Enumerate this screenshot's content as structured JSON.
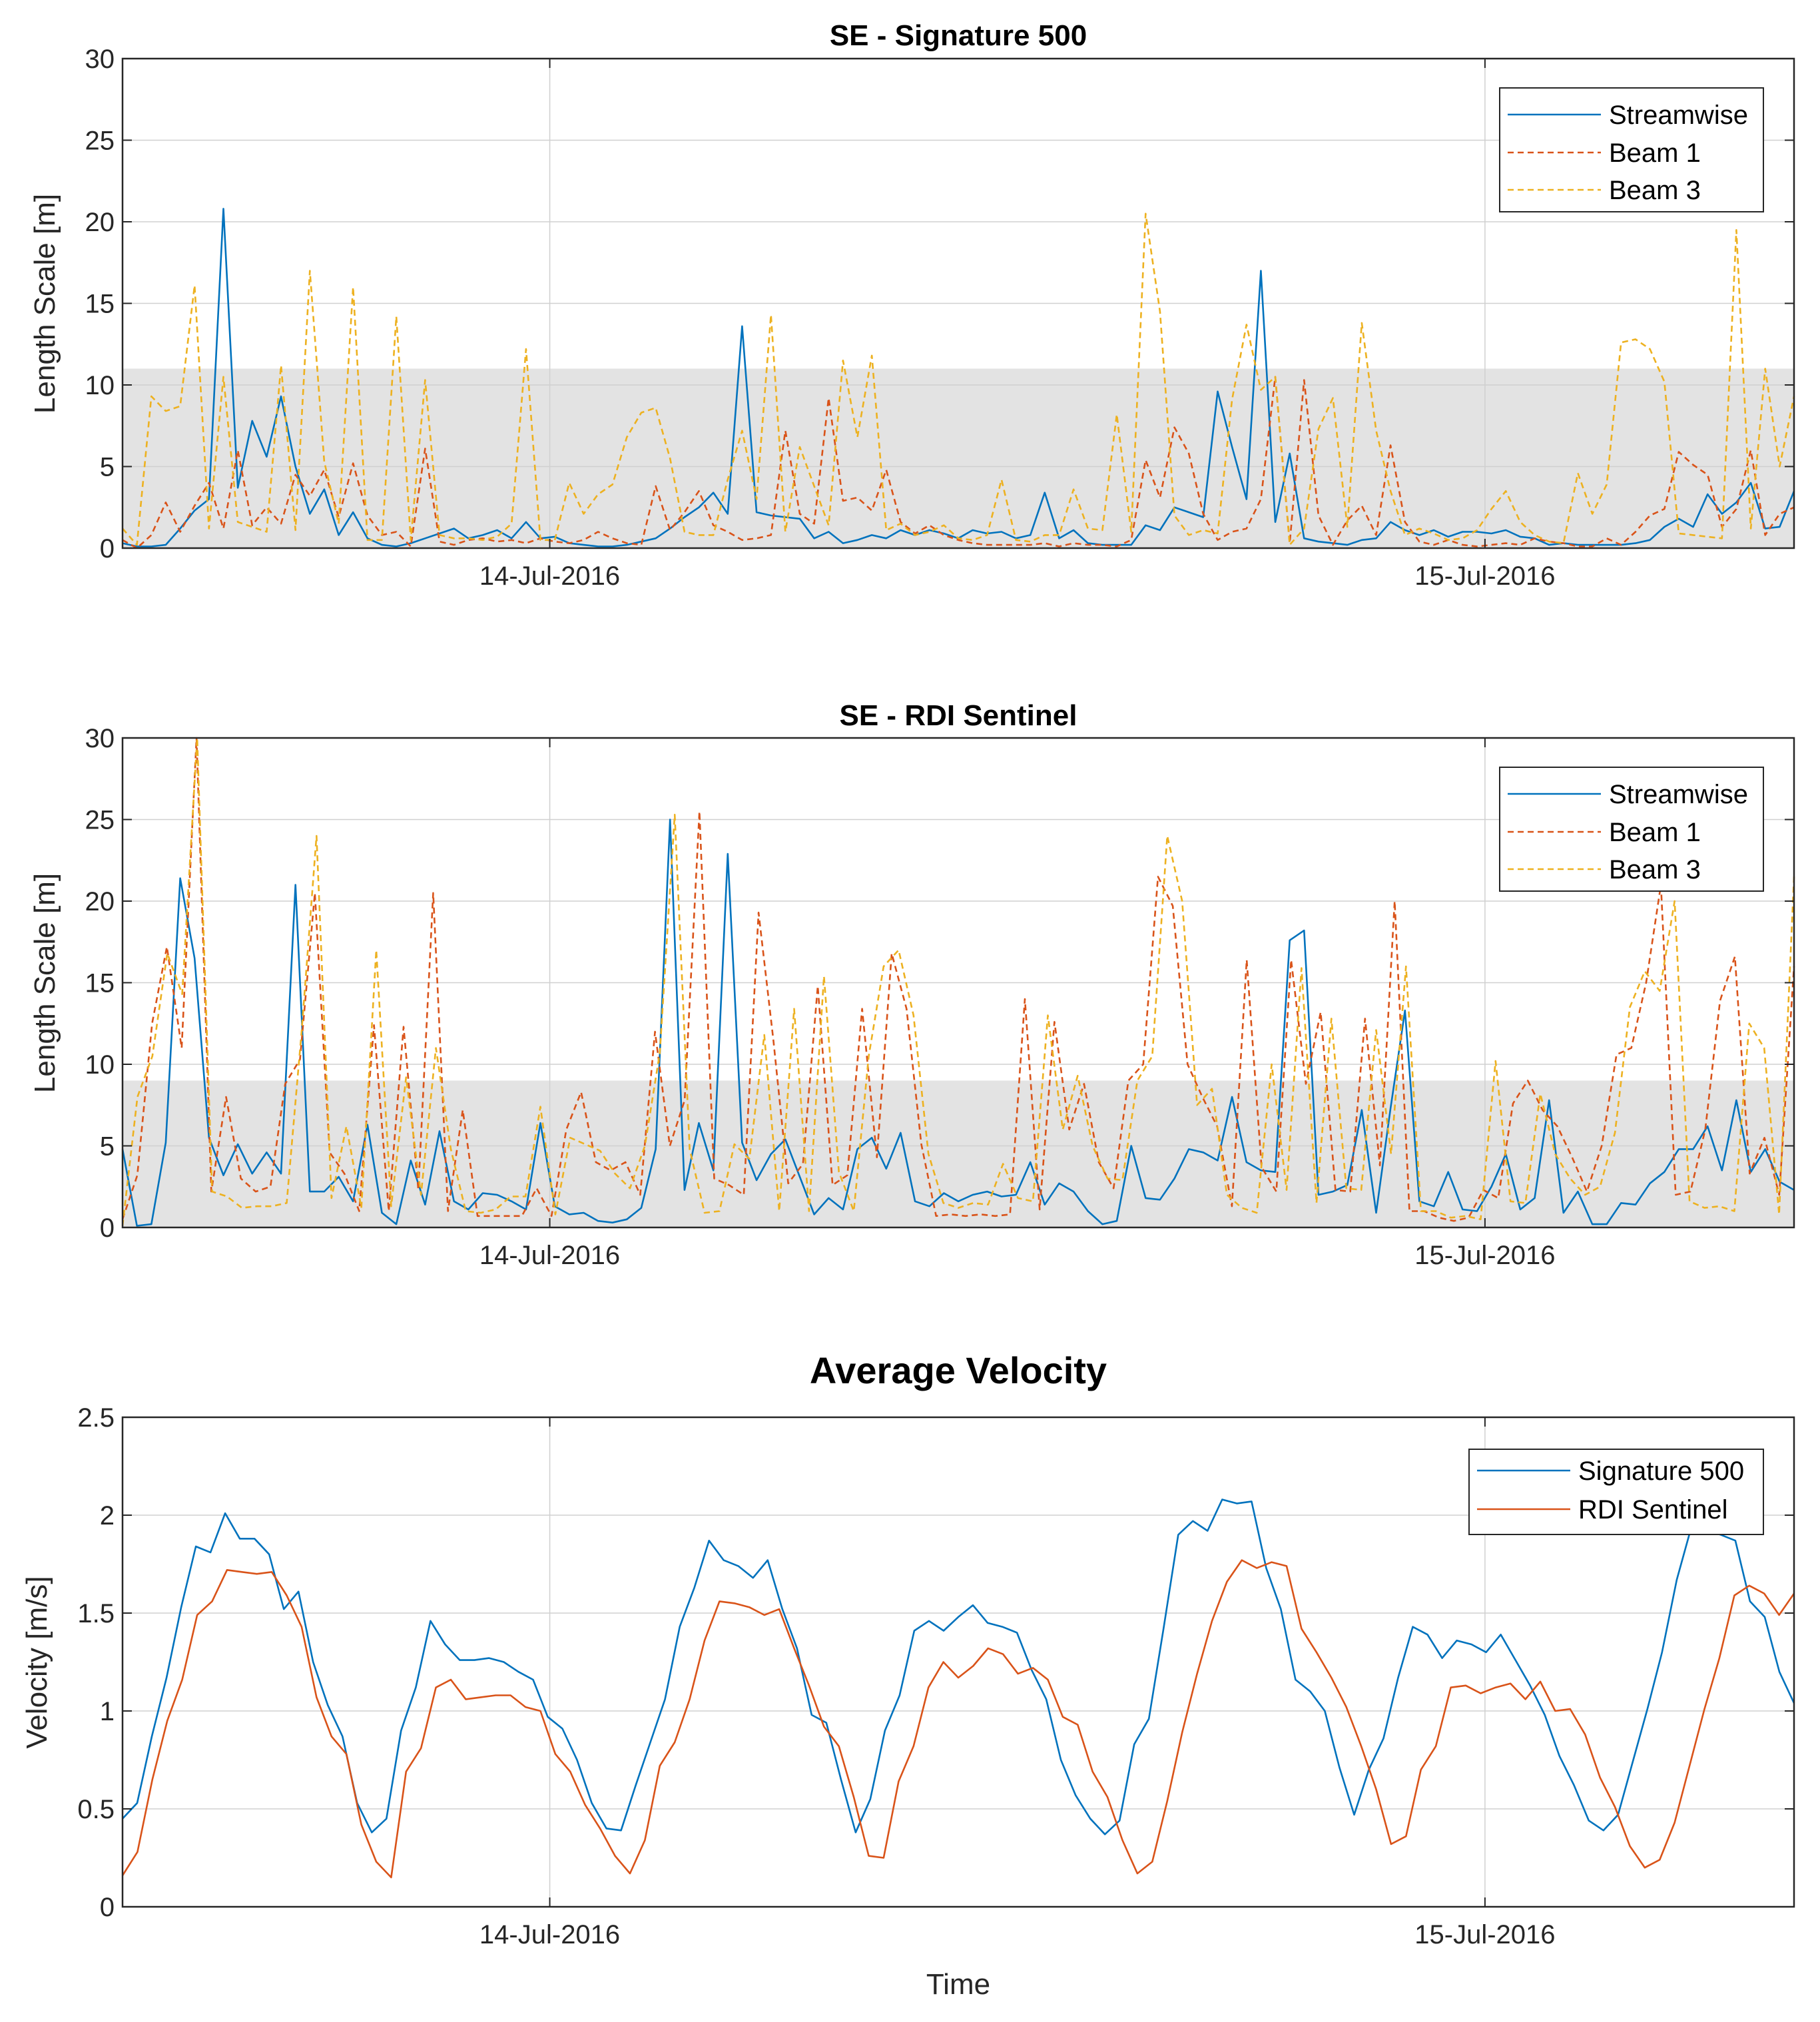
{
  "chart_data": [
    {
      "type": "line",
      "title": "SE - Signature 500",
      "xlabel": "",
      "ylabel": "Length Scale [m]",
      "ylim": [
        0,
        30
      ],
      "yticks": [
        0,
        5,
        10,
        15,
        20,
        25,
        30
      ],
      "xticks": [
        {
          "t": 0.2556,
          "label": "14-Jul-2016"
        },
        {
          "t": 0.8151,
          "label": "15-Jul-2016"
        }
      ],
      "shaded_band": [
        0,
        11
      ],
      "legend": "top-right",
      "series": [
        {
          "name": "Streamwise",
          "color": "#0072BD",
          "dash": "solid",
          "values": [
            0.3,
            0.1,
            0.1,
            0.2,
            1.2,
            2.3,
            3.0,
            20.8,
            3.7,
            7.8,
            5.6,
            9.3,
            5.0,
            2.1,
            3.6,
            0.8,
            2.2,
            0.6,
            0.2,
            0.1,
            0.3,
            0.6,
            0.9,
            1.2,
            0.6,
            0.8,
            1.1,
            0.6,
            1.6,
            0.6,
            0.7,
            0.3,
            0.2,
            0.1,
            0.1,
            0.2,
            0.4,
            0.6,
            1.2,
            1.9,
            2.5,
            3.4,
            2.1,
            13.6,
            2.2,
            2.0,
            1.9,
            1.8,
            0.6,
            1.0,
            0.3,
            0.5,
            0.8,
            0.6,
            1.1,
            0.8,
            1.1,
            0.9,
            0.6,
            1.1,
            0.9,
            1.0,
            0.6,
            0.8,
            3.4,
            0.6,
            1.1,
            0.3,
            0.2,
            0.2,
            0.2,
            1.4,
            1.1,
            2.5,
            2.2,
            1.9,
            9.6,
            6.2,
            3.0,
            17.0,
            1.6,
            5.8,
            0.6,
            0.4,
            0.3,
            0.2,
            0.5,
            0.6,
            1.6,
            1.1,
            0.8,
            1.1,
            0.7,
            1.0,
            1.0,
            0.9,
            1.1,
            0.7,
            0.6,
            0.2,
            0.3,
            0.2,
            0.2,
            0.2,
            0.2,
            0.3,
            0.5,
            1.3,
            1.8,
            1.3,
            3.3,
            2.1,
            2.8,
            4.0,
            1.2,
            1.3,
            3.5
          ]
        },
        {
          "name": "Beam 1",
          "color": "#D95319",
          "dash": "dashed",
          "values": [
            0.5,
            0.0,
            0.8,
            2.8,
            1.0,
            2.6,
            4.0,
            1.2,
            6.0,
            1.4,
            2.5,
            1.5,
            4.5,
            3.2,
            4.8,
            1.9,
            5.2,
            2.0,
            0.8,
            1.0,
            0.1,
            6.1,
            0.4,
            0.2,
            0.5,
            0.6,
            0.4,
            0.5,
            0.3,
            0.6,
            0.4,
            0.3,
            0.5,
            1.0,
            0.6,
            0.3,
            0.2,
            3.8,
            1.1,
            2.2,
            3.5,
            1.4,
            1.0,
            0.5,
            0.6,
            0.8,
            7.2,
            2.1,
            1.5,
            9.2,
            2.9,
            3.1,
            2.3,
            4.8,
            1.6,
            0.9,
            1.4,
            0.8,
            0.5,
            0.3,
            0.2,
            0.2,
            0.2,
            0.2,
            0.3,
            0.1,
            0.3,
            0.2,
            0.2,
            0.1,
            0.5,
            5.4,
            3.1,
            7.4,
            5.8,
            2.1,
            0.5,
            1.0,
            1.2,
            3.0,
            10.5,
            0.3,
            10.3,
            2.0,
            0.2,
            1.7,
            2.6,
            0.8,
            6.3,
            1.6,
            0.4,
            0.2,
            0.5,
            0.2,
            0.1,
            0.2,
            0.3,
            0.2,
            0.6,
            0.4,
            0.3,
            0.1,
            0.1,
            0.6,
            0.2,
            1.0,
            2.0,
            2.4,
            5.9,
            5.1,
            4.5,
            1.3,
            2.4,
            6.0,
            0.8,
            2.1,
            2.5
          ]
        },
        {
          "name": "Beam 3",
          "color": "#EDB120",
          "dash": "dashed",
          "values": [
            1.2,
            0.2,
            9.3,
            8.4,
            8.7,
            16.1,
            1.2,
            10.5,
            1.6,
            1.3,
            1.0,
            11.2,
            1.1,
            17.0,
            5.3,
            1.5,
            16.0,
            0.5,
            0.5,
            14.2,
            0.5,
            10.3,
            0.8,
            0.6,
            0.6,
            0.5,
            0.7,
            1.5,
            12.2,
            0.5,
            0.5,
            4.0,
            2.1,
            3.3,
            3.9,
            6.8,
            8.3,
            8.6,
            5.5,
            1.0,
            0.8,
            0.8,
            4.2,
            7.2,
            3.0,
            14.3,
            1.0,
            6.2,
            3.8,
            1.4,
            11.5,
            6.8,
            11.8,
            1.1,
            1.5,
            0.8,
            1.0,
            1.4,
            0.6,
            0.5,
            0.8,
            4.2,
            0.5,
            0.4,
            0.8,
            0.8,
            3.6,
            1.2,
            1.1,
            8.2,
            1.0,
            20.5,
            14.5,
            2.0,
            0.8,
            1.1,
            0.9,
            9.1,
            13.7,
            9.7,
            10.5,
            0.2,
            1.2,
            7.3,
            9.2,
            1.3,
            13.8,
            7.2,
            3.5,
            0.8,
            1.2,
            0.9,
            0.5,
            0.6,
            1.1,
            2.4,
            3.5,
            1.6,
            0.8,
            0.4,
            0.3,
            4.6,
            2.1,
            3.9,
            12.6,
            12.8,
            12.2,
            10.2,
            0.9,
            0.8,
            0.7,
            0.6,
            19.5,
            1.2,
            11.0,
            5.0,
            9.3
          ]
        }
      ]
    },
    {
      "type": "line",
      "title": "SE - RDI Sentinel",
      "xlabel": "",
      "ylabel": "Length Scale [m]",
      "ylim": [
        0,
        30
      ],
      "yticks": [
        0,
        5,
        10,
        15,
        20,
        25,
        30
      ],
      "xticks": [
        {
          "t": 0.2556,
          "label": "14-Jul-2016"
        },
        {
          "t": 0.8151,
          "label": "15-Jul-2016"
        }
      ],
      "shaded_band": [
        0,
        9
      ],
      "legend": "top-right",
      "series": [
        {
          "name": "Streamwise",
          "color": "#0072BD",
          "dash": "solid",
          "values": [
            4.8,
            0.1,
            0.2,
            5.2,
            21.4,
            16.5,
            5.5,
            3.2,
            5.1,
            3.3,
            4.6,
            3.3,
            21.0,
            2.2,
            2.2,
            3.1,
            1.6,
            6.3,
            0.9,
            0.2,
            4.1,
            1.4,
            5.9,
            1.6,
            1.1,
            2.1,
            2.0,
            1.6,
            1.1,
            6.4,
            1.3,
            0.8,
            0.9,
            0.4,
            0.3,
            0.5,
            1.2,
            4.8,
            25.0,
            2.3,
            6.4,
            3.5,
            22.9,
            5.2,
            2.9,
            4.5,
            5.4,
            3.1,
            0.8,
            1.8,
            1.1,
            4.8,
            5.5,
            3.6,
            5.8,
            1.6,
            1.3,
            2.1,
            1.6,
            2.0,
            2.2,
            1.9,
            2.0,
            4.0,
            1.4,
            2.7,
            2.2,
            1.0,
            0.2,
            0.4,
            5.0,
            1.8,
            1.7,
            3.0,
            4.8,
            4.6,
            4.1,
            8.0,
            4.0,
            3.5,
            3.4,
            17.6,
            18.2,
            2.0,
            2.2,
            2.6,
            7.2,
            0.9,
            7.3,
            13.3,
            1.6,
            1.3,
            3.4,
            1.1,
            1.0,
            2.5,
            4.5,
            1.1,
            1.8,
            7.8,
            0.9,
            2.2,
            0.2,
            0.2,
            1.5,
            1.4,
            2.7,
            3.4,
            4.8,
            4.8,
            6.2,
            3.5,
            7.8,
            3.4,
            4.8,
            2.8,
            2.3
          ]
        },
        {
          "name": "Beam 1",
          "color": "#D95319",
          "dash": "dashed",
          "values": [
            0.5,
            3.2,
            12.5,
            17.2,
            11.0,
            30.0,
            2.2,
            8.0,
            3.0,
            2.2,
            2.5,
            8.8,
            10.3,
            20.5,
            4.6,
            3.3,
            1.0,
            12.4,
            1.0,
            12.3,
            2.3,
            20.5,
            1.0,
            7.2,
            0.7,
            0.7,
            0.7,
            0.7,
            2.4,
            0.7,
            6.0,
            8.3,
            4.0,
            3.5,
            4.0,
            2.0,
            12.0,
            5.0,
            7.8,
            25.5,
            3.0,
            2.6,
            2.0,
            19.3,
            11.5,
            2.7,
            3.9,
            14.8,
            2.6,
            3.2,
            13.4,
            4.3,
            16.8,
            13.4,
            5.1,
            0.7,
            0.8,
            0.7,
            0.8,
            0.7,
            0.8,
            14.0,
            1.1,
            12.6,
            6.0,
            8.8,
            4.0,
            2.4,
            9.0,
            10.0,
            21.5,
            19.7,
            10.0,
            8.0,
            6.2,
            1.3,
            16.4,
            3.7,
            2.2,
            16.4,
            8.8,
            13.2,
            2.3,
            2.2,
            12.8,
            3.8,
            20.0,
            1.0,
            1.0,
            0.6,
            0.4,
            0.6,
            2.3,
            1.8,
            7.6,
            9.0,
            7.2,
            6.2,
            4.3,
            2.2,
            5.0,
            10.6,
            11.0,
            15.0,
            21.0,
            2.0,
            2.2,
            6.0,
            13.9,
            16.6,
            3.3,
            5.5,
            2.0,
            16.0
          ]
        },
        {
          "name": "Beam 3",
          "color": "#EDB120",
          "dash": "dashed",
          "values": [
            0.1,
            8.0,
            10.5,
            16.8,
            14.3,
            30.0,
            2.2,
            1.9,
            1.2,
            1.3,
            1.3,
            1.5,
            12.0,
            24.0,
            1.8,
            6.2,
            1.2,
            17.0,
            1.3,
            9.2,
            2.0,
            11.0,
            4.8,
            1.0,
            0.9,
            1.1,
            1.9,
            1.9,
            7.4,
            0.8,
            5.5,
            5.1,
            4.7,
            3.3,
            2.4,
            5.0,
            10.7,
            25.3,
            4.8,
            0.9,
            1.0,
            5.1,
            4.2,
            11.8,
            1.0,
            13.4,
            1.0,
            15.4,
            3.4,
            1.0,
            10.5,
            16.0,
            17.0,
            13.0,
            4.5,
            1.5,
            1.2,
            1.5,
            1.4,
            3.9,
            1.8,
            1.6,
            13.0,
            6.0,
            9.3,
            5.0,
            3.0,
            2.9,
            9.0,
            10.5,
            24.0,
            20.0,
            7.5,
            8.5,
            2.0,
            1.2,
            0.9,
            10.0,
            2.3,
            15.9,
            1.5,
            12.8,
            2.4,
            2.3,
            12.1,
            4.5,
            16.0,
            1.0,
            1.0,
            0.6,
            0.7,
            0.5,
            10.2,
            1.6,
            1.5,
            8.2,
            4.5,
            3.0,
            2.0,
            2.5,
            5.8,
            13.5,
            15.7,
            14.5,
            20.0,
            1.6,
            1.2,
            1.3,
            1.0,
            12.5,
            11.0,
            0.8,
            21.5
          ]
        }
      ]
    },
    {
      "type": "line",
      "title": "Average Velocity",
      "xlabel": "Time",
      "ylabel": "Velocity [m/s]",
      "ylim": [
        0,
        2.5
      ],
      "yticks": [
        0,
        0.5,
        1,
        1.5,
        2,
        2.5
      ],
      "xticks": [
        {
          "t": 0.2556,
          "label": "14-Jul-2016"
        },
        {
          "t": 0.8151,
          "label": "15-Jul-2016"
        }
      ],
      "legend": "top-right",
      "series": [
        {
          "name": "Signature 500",
          "color": "#0072BD",
          "dash": "solid",
          "values": [
            0.45,
            0.53,
            0.87,
            1.17,
            1.53,
            1.84,
            1.81,
            2.01,
            1.88,
            1.88,
            1.8,
            1.52,
            1.61,
            1.25,
            1.03,
            0.87,
            0.53,
            0.38,
            0.45,
            0.9,
            1.12,
            1.46,
            1.34,
            1.26,
            1.26,
            1.27,
            1.25,
            1.2,
            1.16,
            0.97,
            0.91,
            0.75,
            0.53,
            0.4,
            0.39,
            0.62,
            0.84,
            1.06,
            1.43,
            1.63,
            1.87,
            1.77,
            1.74,
            1.68,
            1.77,
            1.52,
            1.32,
            0.98,
            0.94,
            0.65,
            0.38,
            0.55,
            0.9,
            1.08,
            1.41,
            1.46,
            1.41,
            1.48,
            1.54,
            1.45,
            1.43,
            1.4,
            1.21,
            1.06,
            0.75,
            0.57,
            0.45,
            0.37,
            0.44,
            0.83,
            0.96,
            1.42,
            1.9,
            1.97,
            1.92,
            2.08,
            2.06,
            2.07,
            1.73,
            1.52,
            1.16,
            1.1,
            1.0,
            0.71,
            0.47,
            0.7,
            0.86,
            1.17,
            1.43,
            1.39,
            1.27,
            1.36,
            1.34,
            1.3,
            1.39,
            1.26,
            1.13,
            0.98,
            0.77,
            0.62,
            0.44,
            0.39,
            0.47,
            0.74,
            1.01,
            1.3,
            1.67,
            1.94,
            1.92,
            1.9,
            1.87,
            1.56,
            1.48,
            1.2,
            1.04
          ]
        },
        {
          "name": "RDI Sentinel",
          "color": "#D95319",
          "dash": "solid",
          "values": [
            0.16,
            0.28,
            0.65,
            0.95,
            1.16,
            1.49,
            1.56,
            1.72,
            1.71,
            1.7,
            1.71,
            1.59,
            1.43,
            1.07,
            0.87,
            0.78,
            0.42,
            0.23,
            0.15,
            0.69,
            0.81,
            1.12,
            1.16,
            1.06,
            1.07,
            1.08,
            1.08,
            1.02,
            1.0,
            0.78,
            0.69,
            0.52,
            0.4,
            0.26,
            0.17,
            0.34,
            0.72,
            0.84,
            1.06,
            1.36,
            1.56,
            1.55,
            1.53,
            1.49,
            1.52,
            1.32,
            1.13,
            0.92,
            0.82,
            0.56,
            0.26,
            0.25,
            0.64,
            0.82,
            1.12,
            1.25,
            1.17,
            1.23,
            1.32,
            1.29,
            1.19,
            1.22,
            1.16,
            0.97,
            0.93,
            0.69,
            0.56,
            0.34,
            0.17,
            0.23,
            0.54,
            0.89,
            1.19,
            1.46,
            1.66,
            1.77,
            1.73,
            1.76,
            1.74,
            1.42,
            1.3,
            1.17,
            1.02,
            0.82,
            0.6,
            0.32,
            0.36,
            0.7,
            0.82,
            1.12,
            1.13,
            1.09,
            1.12,
            1.14,
            1.06,
            1.15,
            1.0,
            1.01,
            0.88,
            0.66,
            0.51,
            0.31,
            0.2,
            0.24,
            0.43,
            0.72,
            1.01,
            1.27,
            1.59,
            1.64,
            1.6,
            1.49,
            1.6
          ]
        }
      ]
    }
  ]
}
